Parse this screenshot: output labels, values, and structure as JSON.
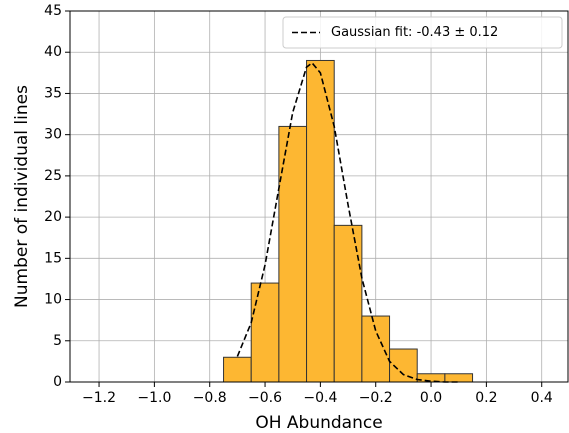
{
  "chart_data": {
    "type": "histogram",
    "xlabel": "OH Abundance",
    "ylabel": "Number of individual lines",
    "bins": [
      -0.75,
      -0.65,
      -0.55,
      -0.45,
      -0.35,
      -0.25,
      -0.15,
      -0.05,
      0.05,
      0.15
    ],
    "values": [
      3,
      12,
      31,
      39,
      19,
      8,
      4,
      1,
      1
    ],
    "color": "#fdb732",
    "edgecolor": "#333333",
    "fit": {
      "name": "Gaussian fit: -0.43 ± 0.12",
      "color": "#000000",
      "x": [
        -0.7,
        -0.65,
        -0.6,
        -0.55,
        -0.5,
        -0.45,
        -0.43,
        -0.4,
        -0.35,
        -0.3,
        -0.25,
        -0.2,
        -0.15,
        -0.1,
        -0.05,
        0.0,
        0.05,
        0.1
      ],
      "values": [
        3.1,
        7.2,
        14.2,
        23.5,
        32.7,
        38.2,
        38.7,
        37.5,
        31.0,
        21.5,
        12.6,
        6.2,
        2.5,
        0.9,
        0.3,
        0.1,
        0.0,
        0.0
      ]
    },
    "xlim": [
      -1.305,
      0.495
    ],
    "ylim": [
      0,
      45
    ],
    "xticks": [
      {
        "value": -1.2,
        "label": "−1.2"
      },
      {
        "value": -1.0,
        "label": "−1.0"
      },
      {
        "value": -0.8,
        "label": "−0.8"
      },
      {
        "value": -0.6,
        "label": "−0.6"
      },
      {
        "value": -0.4,
        "label": "−0.4"
      },
      {
        "value": -0.2,
        "label": "−0.2"
      },
      {
        "value": 0.0,
        "label": "0.0"
      },
      0.2,
      0.4
    ],
    "yticks": [
      0,
      5,
      10,
      15,
      20,
      25,
      30,
      35,
      40,
      45
    ],
    "grid": true,
    "legend": "upper right"
  }
}
